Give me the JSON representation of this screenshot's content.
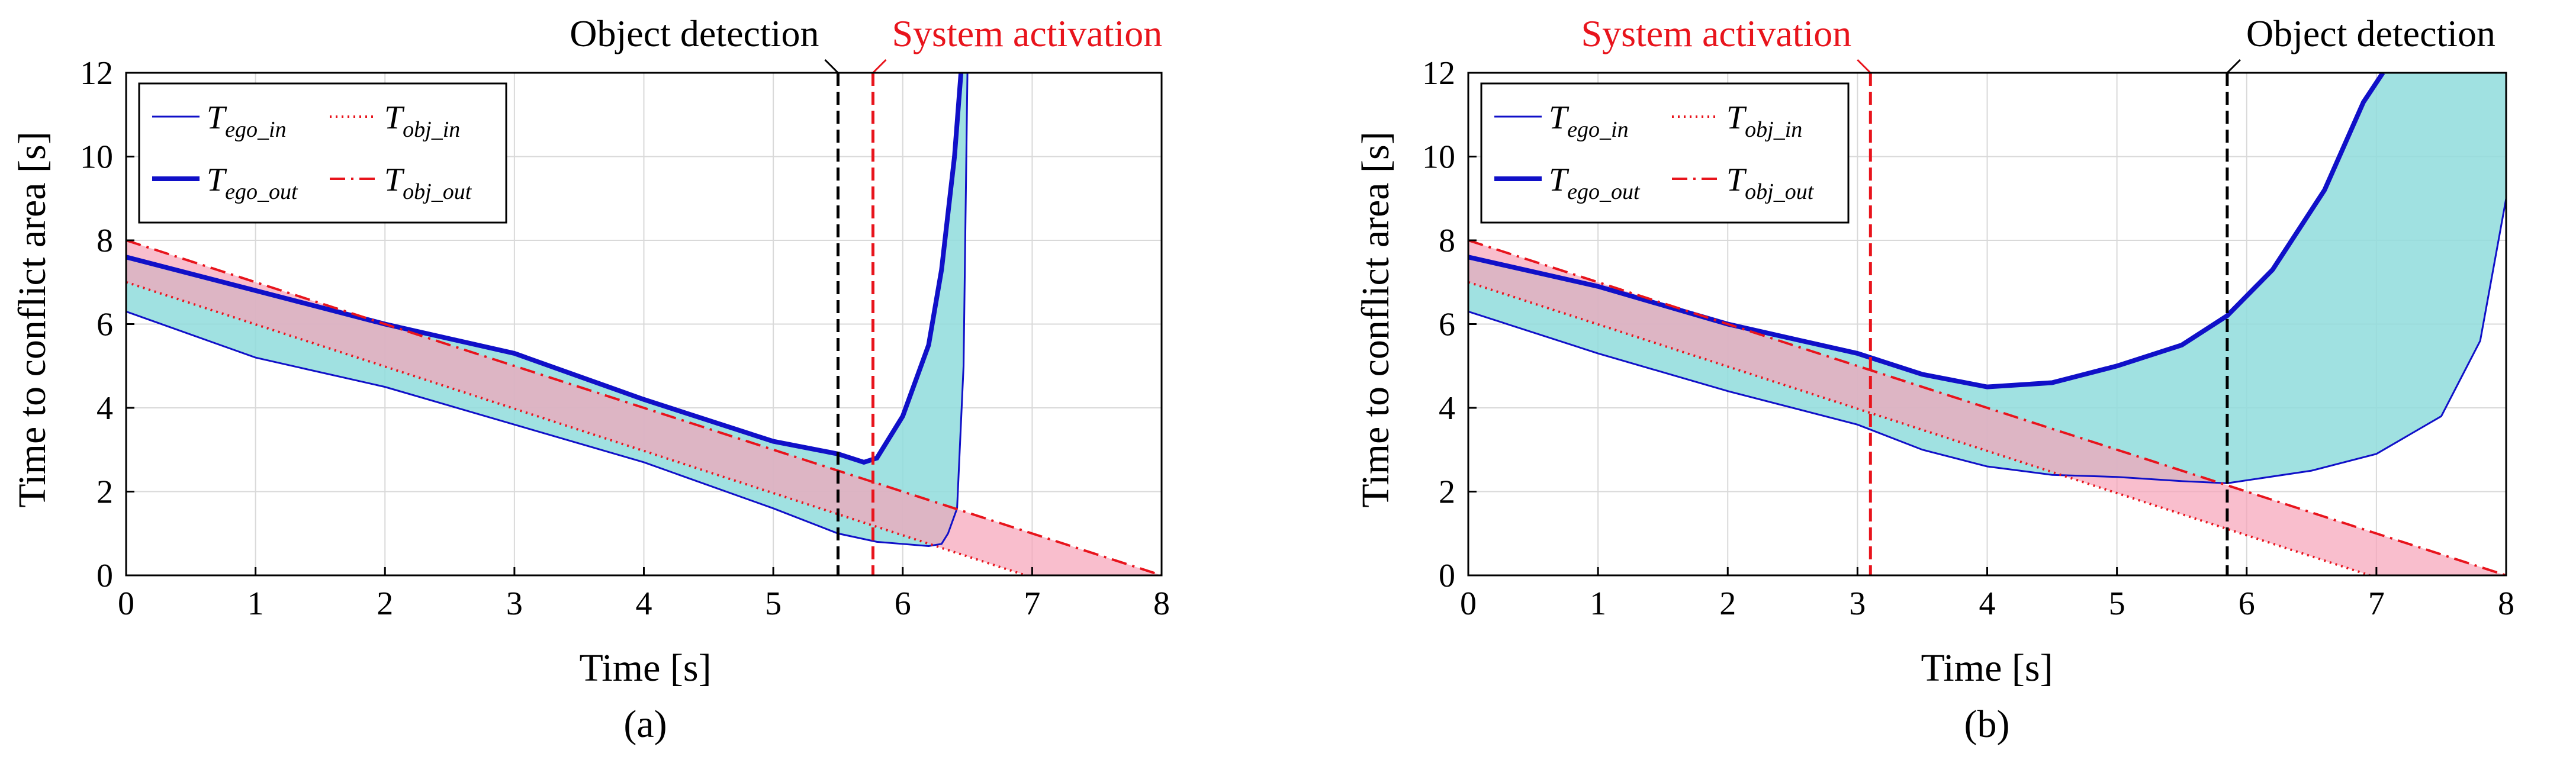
{
  "colors": {
    "ego": "#1010c8",
    "obj": "#e8141c",
    "obj_fill": "#f7a3b8",
    "ego_fill": "#8fdcdc",
    "detect": "#000000",
    "grid": "#d9d9d9"
  },
  "chart_data": [
    {
      "type": "line",
      "panel_label": "(a)",
      "xlabel": "Time [s]",
      "ylabel": "Time to conflict area [s]",
      "xlim": [
        0,
        8
      ],
      "ylim": [
        0,
        12
      ],
      "xticks": [
        "0",
        "1",
        "2",
        "3",
        "4",
        "5",
        "6",
        "7",
        "8"
      ],
      "yticks": [
        "0",
        "2",
        "4",
        "6",
        "8",
        "10",
        "12"
      ],
      "grid": true,
      "legend_position": "top-left",
      "events": [
        {
          "label": "Object detection",
          "time": 5.5,
          "color": "#000000"
        },
        {
          "label": "System activation",
          "time": 5.77,
          "color": "#e8141c"
        }
      ],
      "series": [
        {
          "name": "T_ego_in",
          "base": "T",
          "sub": "ego_in",
          "style": "thin solid",
          "x": [
            0,
            1,
            2,
            3,
            4,
            5,
            5.5,
            5.8,
            6.0,
            6.2,
            6.3,
            6.35,
            6.42,
            6.47,
            6.5
          ],
          "y": [
            6.3,
            5.2,
            4.5,
            3.6,
            2.7,
            1.6,
            1.0,
            0.8,
            0.75,
            0.7,
            0.75,
            1.0,
            1.6,
            5.0,
            12
          ]
        },
        {
          "name": "T_ego_out",
          "base": "T",
          "sub": "ego_out",
          "style": "thick solid",
          "x": [
            0,
            1,
            2,
            3,
            4,
            5,
            5.5,
            5.7,
            5.8,
            6.0,
            6.2,
            6.3,
            6.4,
            6.45
          ],
          "y": [
            7.6,
            6.8,
            6.0,
            5.3,
            4.2,
            3.2,
            2.9,
            2.7,
            2.8,
            3.8,
            5.5,
            7.3,
            10.0,
            12
          ]
        },
        {
          "name": "T_obj_in",
          "base": "T",
          "sub": "obj_in",
          "style": "dotted",
          "x": [
            0,
            6.95
          ],
          "y": [
            7.0,
            0
          ]
        },
        {
          "name": "T_obj_out",
          "base": "T",
          "sub": "obj_out",
          "style": "dash-dot",
          "x": [
            0,
            8
          ],
          "y": [
            8.0,
            0
          ]
        }
      ]
    },
    {
      "type": "line",
      "panel_label": "(b)",
      "xlabel": "Time [s]",
      "ylabel": "Time to conflict area [s]",
      "xlim": [
        0,
        8
      ],
      "ylim": [
        0,
        12
      ],
      "xticks": [
        "0",
        "1",
        "2",
        "3",
        "4",
        "5",
        "6",
        "7",
        "8"
      ],
      "yticks": [
        "0",
        "2",
        "4",
        "6",
        "8",
        "10",
        "12"
      ],
      "grid": true,
      "legend_position": "top-left",
      "events": [
        {
          "label": "System activation",
          "time": 3.1,
          "color": "#e8141c"
        },
        {
          "label": "Object detection",
          "time": 5.85,
          "color": "#000000"
        }
      ],
      "series": [
        {
          "name": "T_ego_in",
          "base": "T",
          "sub": "ego_in",
          "style": "thin solid",
          "x": [
            0,
            1,
            2,
            3,
            3.5,
            4,
            4.5,
            5,
            5.5,
            5.85,
            6.5,
            7,
            7.5,
            7.8,
            8
          ],
          "y": [
            6.3,
            5.3,
            4.4,
            3.6,
            3.0,
            2.6,
            2.4,
            2.35,
            2.25,
            2.2,
            2.5,
            2.9,
            3.8,
            5.6,
            9.0
          ]
        },
        {
          "name": "T_ego_out",
          "base": "T",
          "sub": "ego_out",
          "style": "thick solid",
          "x": [
            0,
            1,
            2,
            3,
            3.5,
            4,
            4.5,
            5,
            5.5,
            5.85,
            6.2,
            6.6,
            6.9,
            7.05
          ],
          "y": [
            7.6,
            6.9,
            6.0,
            5.3,
            4.8,
            4.5,
            4.6,
            5.0,
            5.5,
            6.2,
            7.3,
            9.2,
            11.3,
            12
          ]
        },
        {
          "name": "T_obj_in",
          "base": "T",
          "sub": "obj_in",
          "style": "dotted",
          "x": [
            0,
            6.95
          ],
          "y": [
            7.0,
            0
          ]
        },
        {
          "name": "T_obj_out",
          "base": "T",
          "sub": "obj_out",
          "style": "dash-dot",
          "x": [
            0,
            8
          ],
          "y": [
            8.0,
            0
          ]
        }
      ]
    }
  ]
}
